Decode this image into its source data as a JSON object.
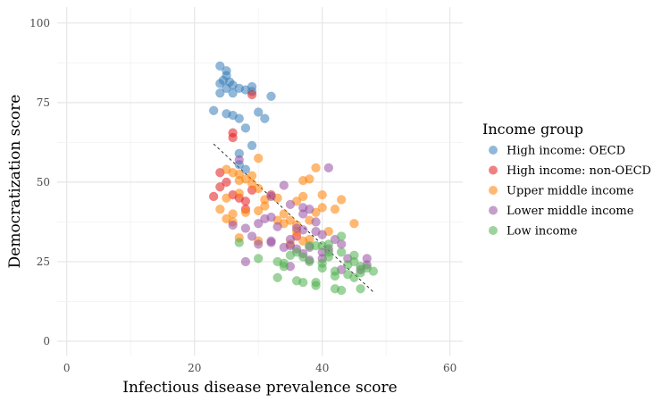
{
  "chart_data": {
    "type": "scatter",
    "xlabel": "Infectious disease prevalence score",
    "ylabel": "Democratization score",
    "xlim": [
      -1.5,
      62
    ],
    "ylim": [
      -4.5,
      105
    ],
    "xticks": [
      0,
      20,
      40,
      60
    ],
    "yticks": [
      0,
      25,
      50,
      75,
      100
    ],
    "grid": true,
    "legend": {
      "title": "Income group",
      "position": "right"
    },
    "trend_line": {
      "style": "dashed",
      "x": [
        23,
        48
      ],
      "y": [
        62,
        15.5
      ]
    },
    "series": [
      {
        "name": "High income: OECD",
        "color": "#377eb8",
        "points": [
          [
            24,
            86.5
          ],
          [
            25,
            85
          ],
          [
            25,
            83.5
          ],
          [
            24.5,
            82
          ],
          [
            25.5,
            81.5
          ],
          [
            26,
            80.5
          ],
          [
            24,
            81
          ],
          [
            25,
            79.5
          ],
          [
            27,
            79.5
          ],
          [
            29,
            80
          ],
          [
            28,
            79
          ],
          [
            24,
            78
          ],
          [
            26,
            78
          ],
          [
            29,
            78.5
          ],
          [
            32,
            77
          ],
          [
            23,
            72.5
          ],
          [
            25,
            71.5
          ],
          [
            26,
            71
          ],
          [
            27,
            70
          ],
          [
            30,
            72
          ],
          [
            31,
            70
          ],
          [
            28,
            67
          ],
          [
            29,
            61.5
          ],
          [
            27,
            59
          ],
          [
            27,
            55.5
          ],
          [
            28,
            54
          ]
        ]
      },
      {
        "name": "High income: non-OECD",
        "color": "#e41a1c",
        "points": [
          [
            29,
            77.5
          ],
          [
            26,
            65.5
          ],
          [
            26,
            64
          ],
          [
            24,
            53
          ],
          [
            25,
            50
          ],
          [
            24,
            48.5
          ],
          [
            23,
            45.5
          ],
          [
            26,
            46
          ],
          [
            27,
            45
          ],
          [
            28,
            44
          ],
          [
            28,
            41.5
          ],
          [
            29,
            47.5
          ],
          [
            32,
            46
          ],
          [
            36,
            33
          ]
        ]
      },
      {
        "name": "Upper middle income",
        "color": "#ff7f00",
        "points": [
          [
            25,
            54
          ],
          [
            26,
            53
          ],
          [
            27,
            52.5
          ],
          [
            28,
            51
          ],
          [
            29,
            52
          ],
          [
            30,
            57.5
          ],
          [
            27,
            50.5
          ],
          [
            29,
            49.5
          ],
          [
            30,
            48
          ],
          [
            25,
            45
          ],
          [
            27,
            46.5
          ],
          [
            31,
            44.5
          ],
          [
            33,
            45
          ],
          [
            36,
            44
          ],
          [
            24,
            41.5
          ],
          [
            26,
            40
          ],
          [
            28,
            40.5
          ],
          [
            30,
            41
          ],
          [
            31,
            42.5
          ],
          [
            34,
            40
          ],
          [
            33,
            38
          ],
          [
            35,
            38
          ],
          [
            36,
            36.5
          ],
          [
            38,
            38
          ],
          [
            39,
            40.5
          ],
          [
            40,
            42
          ],
          [
            41,
            34.5
          ],
          [
            42,
            41.5
          ],
          [
            43,
            44.5
          ],
          [
            45,
            37
          ],
          [
            40,
            46
          ],
          [
            39,
            54.5
          ],
          [
            37,
            50.5
          ],
          [
            38,
            51
          ],
          [
            37,
            45.5
          ],
          [
            25,
            38.5
          ],
          [
            26,
            37.5
          ],
          [
            34,
            37
          ],
          [
            36,
            34.5
          ],
          [
            37,
            31.5
          ],
          [
            35,
            30.5
          ],
          [
            27,
            32.5
          ],
          [
            30,
            31.5
          ],
          [
            38,
            32
          ]
        ]
      },
      {
        "name": "Lower middle income",
        "color": "#984ea3",
        "points": [
          [
            27,
            57
          ],
          [
            32,
            45.5
          ],
          [
            34,
            49
          ],
          [
            35,
            43
          ],
          [
            37,
            42
          ],
          [
            37,
            40
          ],
          [
            38,
            41.5
          ],
          [
            39,
            37.5
          ],
          [
            41,
            54.5
          ],
          [
            26,
            36.5
          ],
          [
            28,
            35.5
          ],
          [
            30,
            37
          ],
          [
            31,
            38.5
          ],
          [
            32,
            39
          ],
          [
            33,
            36
          ],
          [
            36,
            35.5
          ],
          [
            37,
            35
          ],
          [
            39,
            34.5
          ],
          [
            40,
            33.5
          ],
          [
            42,
            32
          ],
          [
            29,
            33
          ],
          [
            30,
            30.5
          ],
          [
            32,
            31
          ],
          [
            34,
            29.5
          ],
          [
            35,
            32
          ],
          [
            35,
            30
          ],
          [
            36,
            29
          ],
          [
            38,
            29.5
          ],
          [
            41,
            29
          ],
          [
            43,
            30.5
          ],
          [
            37,
            27.5
          ],
          [
            38,
            25.5
          ],
          [
            40,
            26
          ],
          [
            43,
            22.5
          ],
          [
            44,
            26
          ],
          [
            46,
            22.5
          ],
          [
            47,
            26
          ],
          [
            47,
            24
          ],
          [
            28,
            25
          ],
          [
            35,
            23.5
          ],
          [
            32,
            31.5
          ],
          [
            40,
            28
          ]
        ]
      },
      {
        "name": "Low income",
        "color": "#4daf4a",
        "points": [
          [
            27,
            31
          ],
          [
            30,
            26
          ],
          [
            33,
            25
          ],
          [
            34,
            23.5
          ],
          [
            35,
            27
          ],
          [
            36,
            28
          ],
          [
            37,
            26.5
          ],
          [
            38,
            25
          ],
          [
            39,
            30
          ],
          [
            40,
            30
          ],
          [
            41,
            28
          ],
          [
            43,
            33
          ],
          [
            43,
            28
          ],
          [
            41,
            26.5
          ],
          [
            40,
            24.5
          ],
          [
            42,
            22
          ],
          [
            44,
            24
          ],
          [
            45,
            27
          ],
          [
            45,
            25
          ],
          [
            46,
            23.5
          ],
          [
            46,
            21.5
          ],
          [
            47,
            23
          ],
          [
            48,
            22
          ],
          [
            33,
            20
          ],
          [
            36,
            19
          ],
          [
            39,
            18.5
          ],
          [
            39,
            17.5
          ],
          [
            42,
            16.5
          ],
          [
            43,
            16
          ],
          [
            46,
            16.5
          ],
          [
            44,
            21
          ],
          [
            40,
            23
          ],
          [
            38,
            30
          ],
          [
            34,
            24.5
          ],
          [
            37,
            18.5
          ],
          [
            42,
            20.5
          ],
          [
            45,
            20
          ],
          [
            41,
            30.5
          ]
        ]
      }
    ]
  }
}
